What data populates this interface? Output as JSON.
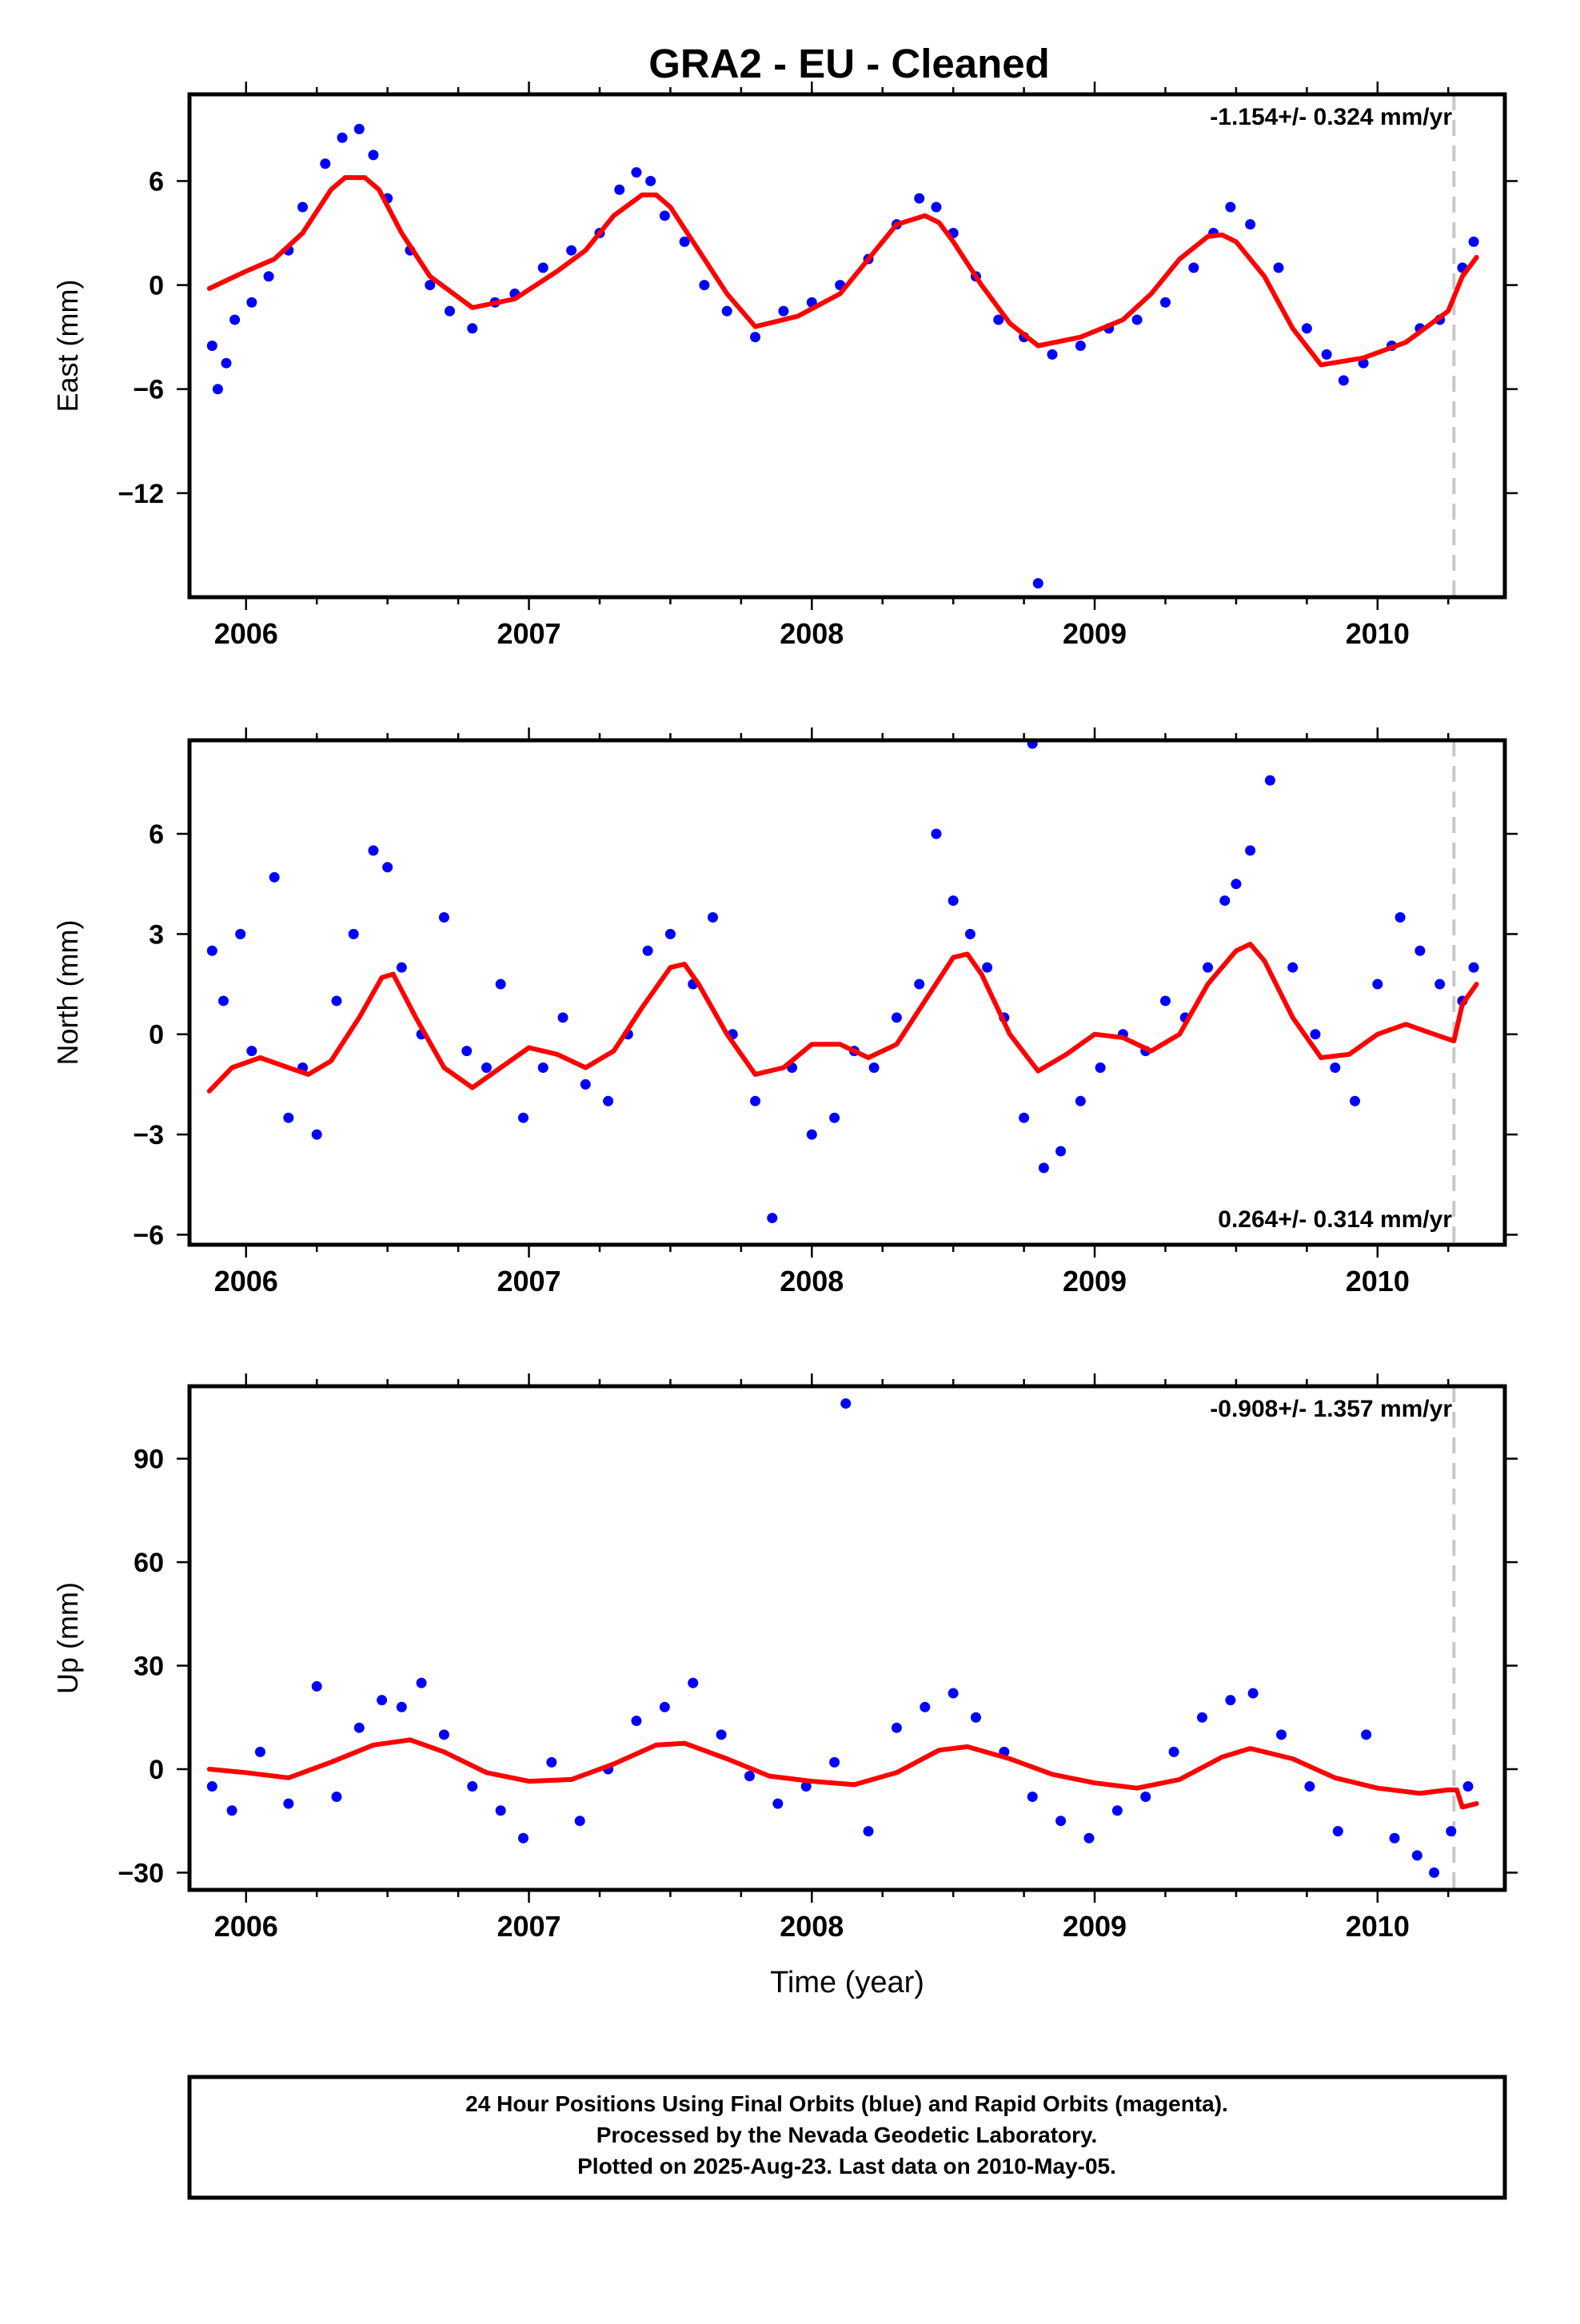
{
  "page": {
    "title": "GRA2  - EU - Cleaned",
    "footer_lines": [
      "24 Hour Positions Using Final Orbits (blue) and Rapid Orbits (magenta).",
      "Processed by the Nevada Geodetic Laboratory.",
      "Plotted on 2025-Aug-23. Last data on 2010-May-05."
    ]
  },
  "colors": {
    "points": "#0000ff",
    "model": "#ff0000",
    "marker_line": "#c8c8c8",
    "frame": "#000000"
  },
  "chart_data": [
    {
      "type": "scatter",
      "id": "east",
      "ylabel": "East (mm)",
      "xlabel": "",
      "rate_label": "-1.154+/- 0.324 mm/yr",
      "rate_label_position": "top-right",
      "xlim": [
        2005.8,
        2010.45
      ],
      "ylim": [
        -18,
        11
      ],
      "x_ticks": [
        2006,
        2007,
        2008,
        2009,
        2010
      ],
      "x_tick_labels": [
        "2006",
        "2007",
        "2008",
        "2009",
        "2010"
      ],
      "y_ticks": [
        6,
        0,
        -6,
        -12
      ],
      "y_tick_labels": [
        "6",
        "0",
        "−6",
        "−12"
      ],
      "marker_x": 2010.27,
      "model_line": {
        "x": [
          2005.87,
          2006.0,
          2006.1,
          2006.2,
          2006.3,
          2006.35,
          2006.42,
          2006.47,
          2006.55,
          2006.65,
          2006.8,
          2006.95,
          2007.1,
          2007.2,
          2007.3,
          2007.4,
          2007.45,
          2007.5,
          2007.6,
          2007.7,
          2007.8,
          2007.95,
          2008.1,
          2008.2,
          2008.3,
          2008.4,
          2008.45,
          2008.5,
          2008.6,
          2008.7,
          2008.8,
          2008.95,
          2009.1,
          2009.2,
          2009.3,
          2009.4,
          2009.45,
          2009.5,
          2009.6,
          2009.7,
          2009.8,
          2009.95,
          2010.1,
          2010.25,
          2010.3,
          2010.35
        ],
        "y": [
          -0.2,
          0.8,
          1.5,
          3.0,
          5.5,
          6.2,
          6.2,
          5.5,
          3.0,
          0.5,
          -1.3,
          -0.8,
          0.8,
          2.0,
          4.0,
          5.2,
          5.2,
          4.5,
          2.0,
          -0.5,
          -2.4,
          -1.8,
          -0.5,
          1.5,
          3.5,
          4.0,
          3.6,
          2.5,
          0.0,
          -2.2,
          -3.5,
          -3.0,
          -2.0,
          -0.5,
          1.5,
          2.8,
          2.9,
          2.5,
          0.5,
          -2.5,
          -4.6,
          -4.2,
          -3.3,
          -1.5,
          0.5,
          1.6
        ]
      },
      "points": {
        "x": [
          2005.88,
          2005.9,
          2005.93,
          2005.96,
          2006.02,
          2006.08,
          2006.15,
          2006.2,
          2006.28,
          2006.34,
          2006.4,
          2006.45,
          2006.5,
          2006.58,
          2006.65,
          2006.72,
          2006.8,
          2006.88,
          2006.95,
          2007.05,
          2007.15,
          2007.25,
          2007.32,
          2007.38,
          2007.43,
          2007.48,
          2007.55,
          2007.62,
          2007.7,
          2007.8,
          2007.9,
          2008.0,
          2008.1,
          2008.2,
          2008.3,
          2008.38,
          2008.44,
          2008.5,
          2008.58,
          2008.66,
          2008.75,
          2008.8,
          2008.85,
          2008.95,
          2009.05,
          2009.15,
          2009.25,
          2009.35,
          2009.42,
          2009.48,
          2009.55,
          2009.65,
          2009.75,
          2009.82,
          2009.88,
          2009.95,
          2010.05,
          2010.15,
          2010.22,
          2010.3,
          2010.34
        ],
        "y": [
          -3.5,
          -6.0,
          -4.5,
          -2.0,
          -1.0,
          0.5,
          2.0,
          4.5,
          7.0,
          8.5,
          9.0,
          7.5,
          5.0,
          2.0,
          0.0,
          -1.5,
          -2.5,
          -1.0,
          -0.5,
          1.0,
          2.0,
          3.0,
          5.5,
          6.5,
          6.0,
          4.0,
          2.5,
          0.0,
          -1.5,
          -3.0,
          -1.5,
          -1.0,
          0.0,
          1.5,
          3.5,
          5.0,
          4.5,
          3.0,
          0.5,
          -2.0,
          -3.0,
          -17.2,
          -4.0,
          -3.5,
          -2.5,
          -2.0,
          -1.0,
          1.0,
          3.0,
          4.5,
          3.5,
          1.0,
          -2.5,
          -4.0,
          -5.5,
          -4.5,
          -3.5,
          -2.5,
          -2.0,
          1.0,
          2.5
        ]
      }
    },
    {
      "type": "scatter",
      "id": "north",
      "ylabel": "North (mm)",
      "xlabel": "",
      "rate_label": "0.264+/- 0.314 mm/yr",
      "rate_label_position": "bottom-right",
      "xlim": [
        2005.8,
        2010.45
      ],
      "ylim": [
        -6.3,
        8.8
      ],
      "x_ticks": [
        2006,
        2007,
        2008,
        2009,
        2010
      ],
      "x_tick_labels": [
        "2006",
        "2007",
        "2008",
        "2009",
        "2010"
      ],
      "y_ticks": [
        6,
        3,
        0,
        -3,
        -6
      ],
      "y_tick_labels": [
        "6",
        "3",
        "0",
        "−3",
        "−6"
      ],
      "marker_x": 2010.27,
      "model_line": {
        "x": [
          2005.87,
          2005.95,
          2006.05,
          2006.15,
          2006.22,
          2006.3,
          2006.4,
          2006.48,
          2006.52,
          2006.6,
          2006.7,
          2006.8,
          2006.9,
          2007.0,
          2007.1,
          2007.2,
          2007.3,
          2007.4,
          2007.5,
          2007.55,
          2007.6,
          2007.7,
          2007.8,
          2007.9,
          2008.0,
          2008.1,
          2008.2,
          2008.3,
          2008.4,
          2008.5,
          2008.55,
          2008.6,
          2008.7,
          2008.8,
          2008.9,
          2009.0,
          2009.1,
          2009.2,
          2009.3,
          2009.4,
          2009.5,
          2009.55,
          2009.6,
          2009.7,
          2009.8,
          2009.9,
          2010.0,
          2010.1,
          2010.2,
          2010.27,
          2010.3,
          2010.35
        ],
        "y": [
          -1.7,
          -1.0,
          -0.7,
          -1.0,
          -1.2,
          -0.8,
          0.5,
          1.7,
          1.8,
          0.5,
          -1.0,
          -1.6,
          -1.0,
          -0.4,
          -0.6,
          -1.0,
          -0.5,
          0.8,
          2.0,
          2.1,
          1.5,
          0.0,
          -1.2,
          -1.0,
          -0.3,
          -0.3,
          -0.7,
          -0.3,
          1.0,
          2.3,
          2.4,
          1.8,
          0.0,
          -1.1,
          -0.6,
          0.0,
          -0.1,
          -0.5,
          0.0,
          1.5,
          2.5,
          2.7,
          2.2,
          0.5,
          -0.7,
          -0.6,
          0.0,
          0.3,
          0.0,
          -0.2,
          0.9,
          1.5
        ]
      },
      "points": {
        "x": [
          2005.88,
          2005.92,
          2005.98,
          2006.02,
          2006.1,
          2006.15,
          2006.2,
          2006.25,
          2006.32,
          2006.38,
          2006.45,
          2006.5,
          2006.55,
          2006.62,
          2006.7,
          2006.78,
          2006.85,
          2006.9,
          2006.98,
          2007.05,
          2007.12,
          2007.2,
          2007.28,
          2007.35,
          2007.42,
          2007.5,
          2007.58,
          2007.65,
          2007.72,
          2007.8,
          2007.86,
          2007.93,
          2008.0,
          2008.08,
          2008.15,
          2008.22,
          2008.3,
          2008.38,
          2008.44,
          2008.5,
          2008.56,
          2008.62,
          2008.68,
          2008.75,
          2008.78,
          2008.82,
          2008.88,
          2008.95,
          2009.02,
          2009.1,
          2009.18,
          2009.25,
          2009.32,
          2009.4,
          2009.46,
          2009.5,
          2009.55,
          2009.62,
          2009.7,
          2009.78,
          2009.85,
          2009.92,
          2010.0,
          2010.08,
          2010.15,
          2010.22,
          2010.3,
          2010.34
        ],
        "y": [
          2.5,
          1.0,
          3.0,
          -0.5,
          4.7,
          -2.5,
          -1.0,
          -3.0,
          1.0,
          3.0,
          5.5,
          5.0,
          2.0,
          0.0,
          3.5,
          -0.5,
          -1.0,
          1.5,
          -2.5,
          -1.0,
          0.5,
          -1.5,
          -2.0,
          0.0,
          2.5,
          3.0,
          1.5,
          3.5,
          0.0,
          -2.0,
          -5.5,
          -1.0,
          -3.0,
          -2.5,
          -0.5,
          -1.0,
          0.5,
          1.5,
          6.0,
          4.0,
          3.0,
          2.0,
          0.5,
          -2.5,
          8.7,
          -4.0,
          -3.5,
          -2.0,
          -1.0,
          0.0,
          -0.5,
          1.0,
          0.5,
          2.0,
          4.0,
          4.5,
          5.5,
          7.6,
          2.0,
          0.0,
          -1.0,
          -2.0,
          1.5,
          3.5,
          2.5,
          1.5,
          1.0,
          2.0
        ]
      }
    },
    {
      "type": "scatter",
      "id": "up",
      "ylabel": "Up (mm)",
      "xlabel": "Time (year)",
      "rate_label": "-0.908+/- 1.357 mm/yr",
      "rate_label_position": "top-right",
      "xlim": [
        2005.8,
        2010.45
      ],
      "ylim": [
        -35,
        111
      ],
      "x_ticks": [
        2006,
        2007,
        2008,
        2009,
        2010
      ],
      "x_tick_labels": [
        "2006",
        "2007",
        "2008",
        "2009",
        "2010"
      ],
      "y_ticks": [
        90,
        60,
        30,
        0,
        -30
      ],
      "y_tick_labels": [
        "90",
        "60",
        "30",
        "0",
        "−30"
      ],
      "marker_x": 2010.27,
      "model_line": {
        "x": [
          2005.87,
          2006.0,
          2006.15,
          2006.3,
          2006.45,
          2006.58,
          2006.7,
          2006.85,
          2007.0,
          2007.15,
          2007.3,
          2007.45,
          2007.55,
          2007.7,
          2007.85,
          2008.0,
          2008.15,
          2008.3,
          2008.45,
          2008.55,
          2008.7,
          2008.85,
          2009.0,
          2009.15,
          2009.3,
          2009.45,
          2009.55,
          2009.7,
          2009.85,
          2010.0,
          2010.15,
          2010.25,
          2010.28,
          2010.3,
          2010.35
        ],
        "y": [
          0.0,
          -1.0,
          -2.5,
          2.0,
          7.0,
          8.5,
          5.0,
          -1.0,
          -3.5,
          -3.0,
          1.5,
          7.0,
          7.5,
          3.0,
          -2.0,
          -3.5,
          -4.5,
          -1.0,
          5.5,
          6.5,
          3.0,
          -1.5,
          -4.0,
          -5.5,
          -3.0,
          3.5,
          6.0,
          3.0,
          -2.5,
          -5.5,
          -7.0,
          -6.0,
          -6.0,
          -11.0,
          -10.0
        ]
      },
      "points": {
        "x": [
          2005.88,
          2005.95,
          2006.05,
          2006.15,
          2006.25,
          2006.32,
          2006.4,
          2006.48,
          2006.55,
          2006.62,
          2006.7,
          2006.8,
          2006.9,
          2006.98,
          2007.08,
          2007.18,
          2007.28,
          2007.38,
          2007.48,
          2007.58,
          2007.68,
          2007.78,
          2007.88,
          2007.98,
          2008.08,
          2008.12,
          2008.2,
          2008.3,
          2008.4,
          2008.5,
          2008.58,
          2008.68,
          2008.78,
          2008.88,
          2008.98,
          2009.08,
          2009.18,
          2009.28,
          2009.38,
          2009.48,
          2009.56,
          2009.66,
          2009.76,
          2009.86,
          2009.96,
          2010.06,
          2010.14,
          2010.2,
          2010.26,
          2010.32
        ],
        "y": [
          -5.0,
          -12.0,
          5.0,
          -10.0,
          24.0,
          -8.0,
          12.0,
          20.0,
          18.0,
          25.0,
          10.0,
          -5.0,
          -12.0,
          -20.0,
          2.0,
          -15.0,
          0.0,
          14.0,
          18.0,
          25.0,
          10.0,
          -2.0,
          -10.0,
          -5.0,
          2.0,
          106.0,
          -18.0,
          12.0,
          18.0,
          22.0,
          15.0,
          5.0,
          -8.0,
          -15.0,
          -20.0,
          -12.0,
          -8.0,
          5.0,
          15.0,
          20.0,
          22.0,
          10.0,
          -5.0,
          -18.0,
          10.0,
          -20.0,
          -25.0,
          -30.0,
          -18.0,
          -5.0
        ]
      }
    }
  ]
}
